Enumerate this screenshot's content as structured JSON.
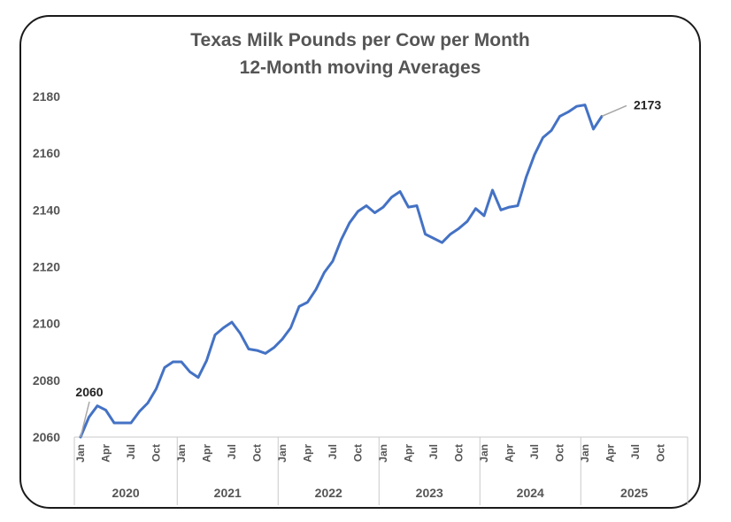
{
  "chart_data": {
    "type": "line",
    "title": [
      "Texas Milk Pounds per Cow per Month",
      "12-Month moving Averages"
    ],
    "xlabel": "",
    "ylabel": "",
    "ylim": [
      2060,
      2180
    ],
    "yticks": [
      2060,
      2080,
      2100,
      2120,
      2140,
      2160,
      2180
    ],
    "month_tick_labels": [
      "Jan",
      "Apr",
      "Jul",
      "Oct"
    ],
    "years": [
      "2020",
      "2021",
      "2022",
      "2023",
      "2024",
      "2025"
    ],
    "months_per_year": 12,
    "series": [
      {
        "color": "#4472C4",
        "values": [
          2060,
          2067,
          2071,
          2069.5,
          2065,
          2065,
          2065,
          2069,
          2072,
          2077,
          2084.5,
          2086.5,
          2086.5,
          2083,
          2081,
          2087,
          2096,
          2098.5,
          2100.5,
          2096.5,
          2091,
          2090.5,
          2089.5,
          2091.5,
          2094.5,
          2098.5,
          2106,
          2107.5,
          2112,
          2118,
          2122,
          2129.5,
          2135.5,
          2139.5,
          2141.5,
          2139,
          2141,
          2144.5,
          2146.5,
          2141,
          2141.5,
          2131.5,
          2130,
          2128.5,
          2131.5,
          2133.5,
          2136,
          2140.5,
          2138,
          2147,
          2140,
          2141,
          2141.5,
          2151.5,
          2159.5,
          2165.5,
          2168,
          2173,
          2174.5,
          2176.5,
          2177,
          2168.5,
          2173
        ]
      }
    ],
    "annotations": [
      {
        "label": "2060",
        "point_index": 0,
        "value": 2060
      },
      {
        "label": "2173",
        "point_index": 62,
        "value": 2173
      }
    ],
    "grid": false,
    "legend": "none"
  }
}
